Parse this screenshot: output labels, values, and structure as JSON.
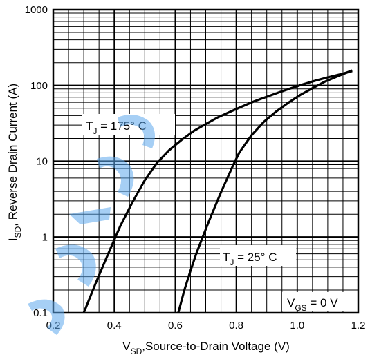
{
  "chart_data": {
    "type": "line",
    "xlim": [
      0.2,
      1.2
    ],
    "ylim": [
      0.1,
      1000
    ],
    "y_scale": "log",
    "grid": true,
    "x_ticks": [
      "0.2",
      "0.4",
      "0.6",
      "0.8",
      "1.0",
      "1.2"
    ],
    "y_ticks": [
      "0.1",
      "1",
      "10",
      "100",
      "1000"
    ],
    "xlabel": {
      "main": "V",
      "sub": "SD",
      "rest": ",Source-to-Drain Voltage (V)"
    },
    "ylabel": {
      "main": "I",
      "sub": "SD",
      "rest": ", Reverse Drain Current (A)"
    },
    "annotations": [
      {
        "main": "T",
        "sub": "J",
        "rest": " = 175° C"
      },
      {
        "main": "T",
        "sub": "J",
        "rest": " = 25° C"
      },
      {
        "main": "V",
        "sub": "GS",
        "rest": " = 0 V"
      }
    ],
    "series": [
      {
        "x": [
          0.3,
          0.34,
          0.38,
          0.42,
          0.46,
          0.5,
          0.54,
          0.58,
          0.62,
          0.66,
          0.7,
          0.74,
          0.78,
          0.82,
          0.86,
          0.9,
          0.94,
          0.98,
          1.02,
          1.06,
          1.1,
          1.14,
          1.18
        ],
        "y": [
          0.1,
          0.25,
          0.6,
          1.4,
          2.9,
          5.6,
          9.5,
          14,
          19,
          25,
          31,
          38,
          45,
          53,
          62,
          71,
          81,
          92,
          104,
          116,
          128,
          140,
          155
        ]
      },
      {
        "x": [
          0.61,
          0.63,
          0.65,
          0.67,
          0.69,
          0.71,
          0.73,
          0.75,
          0.77,
          0.79,
          0.81,
          0.85,
          0.89,
          0.93,
          0.97,
          1.01,
          1.05,
          1.09,
          1.13,
          1.18
        ],
        "y": [
          0.1,
          0.2,
          0.36,
          0.62,
          1.0,
          1.6,
          2.5,
          3.9,
          5.9,
          8.9,
          13,
          22,
          33,
          45,
          59,
          75,
          92,
          112,
          131,
          158
        ]
      }
    ]
  }
}
